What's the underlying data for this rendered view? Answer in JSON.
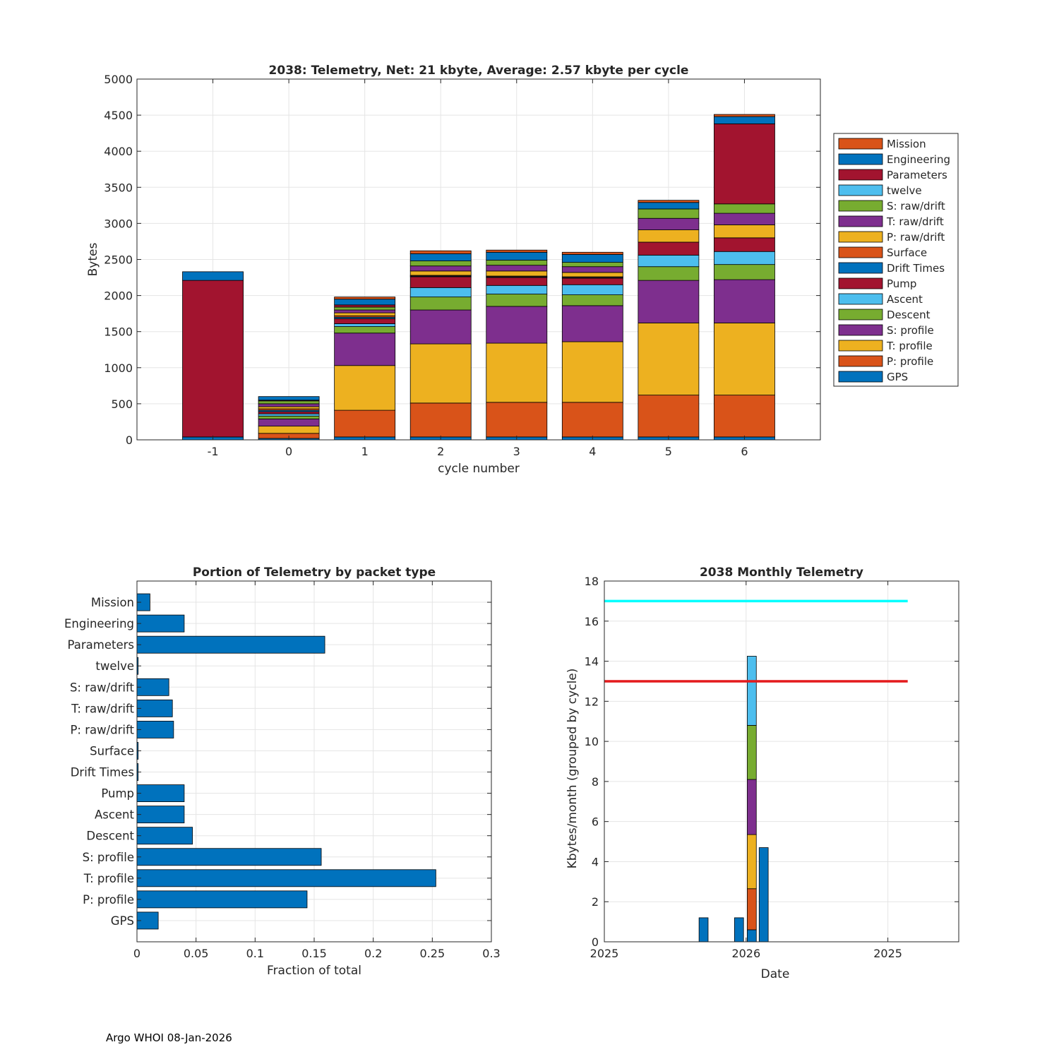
{
  "footer": "Argo WHOI 08-Jan-2026",
  "colors": {
    "mission": "#D95319",
    "engineering": "#0072BD",
    "parameters": "#A2142F",
    "twelve": "#4DBEEE",
    "s_raw": "#77AC30",
    "t_raw": "#7E2F8E",
    "p_raw": "#EDB120",
    "surface": "#D95319",
    "drift": "#0072BD",
    "pump": "#A2142F",
    "ascent": "#4DBEEE",
    "descent": "#77AC30",
    "s_profile": "#7E2F8E",
    "t_profile": "#EDB120",
    "p_profile": "#D95319",
    "gps": "#0072BD",
    "cyan_line": "#00FFFF",
    "red_line": "#E41A1C"
  },
  "chart_data": [
    {
      "type": "bar",
      "stacked": true,
      "title": "2038: Telemetry, Net:     21 kbyte,  Average: 2.57 kbyte per cycle",
      "xlabel": "cycle number",
      "ylabel": "Bytes",
      "ylim": [
        0,
        5000
      ],
      "yticks": [
        0,
        500,
        1000,
        1500,
        2000,
        2500,
        3000,
        3500,
        4000,
        4500,
        5000
      ],
      "xlim": [
        -2,
        7
      ],
      "categories": [
        "-1",
        "0",
        "1",
        "2",
        "3",
        "4",
        "5",
        "6"
      ],
      "legend_position": "outside-right",
      "series": [
        {
          "name": "GPS",
          "color_key": "gps",
          "values": [
            40,
            20,
            40,
            40,
            40,
            40,
            40,
            40
          ]
        },
        {
          "name": "P: profile",
          "color_key": "p_profile",
          "values": [
            0,
            70,
            370,
            470,
            480,
            480,
            580,
            580
          ]
        },
        {
          "name": "T: profile",
          "color_key": "t_profile",
          "values": [
            0,
            100,
            620,
            820,
            820,
            840,
            1000,
            1000
          ]
        },
        {
          "name": "S: profile",
          "color_key": "s_profile",
          "values": [
            0,
            100,
            450,
            470,
            510,
            500,
            590,
            600
          ]
        },
        {
          "name": "Descent",
          "color_key": "descent",
          "values": [
            0,
            40,
            90,
            180,
            170,
            150,
            190,
            210
          ]
        },
        {
          "name": "Ascent",
          "color_key": "ascent",
          "values": [
            0,
            30,
            40,
            130,
            120,
            140,
            160,
            180
          ]
        },
        {
          "name": "Pump",
          "color_key": "pump",
          "values": [
            0,
            30,
            70,
            150,
            110,
            90,
            180,
            190
          ]
        },
        {
          "name": "Drift Times",
          "color_key": "drift",
          "values": [
            0,
            20,
            20,
            10,
            10,
            10,
            0,
            0
          ]
        },
        {
          "name": "Surface",
          "color_key": "surface",
          "values": [
            0,
            20,
            20,
            10,
            10,
            10,
            0,
            0
          ]
        },
        {
          "name": "P: raw/drift",
          "color_key": "p_raw",
          "values": [
            0,
            30,
            40,
            60,
            70,
            60,
            170,
            180
          ]
        },
        {
          "name": "T: raw/drift",
          "color_key": "t_raw",
          "values": [
            0,
            40,
            40,
            70,
            80,
            80,
            160,
            160
          ]
        },
        {
          "name": "S: raw/drift",
          "color_key": "s_raw",
          "values": [
            0,
            40,
            40,
            70,
            70,
            60,
            130,
            130
          ]
        },
        {
          "name": "twelve",
          "color_key": "twelve",
          "values": [
            0,
            0,
            0,
            0,
            0,
            0,
            0,
            0
          ]
        },
        {
          "name": "Parameters",
          "color_key": "parameters",
          "values": [
            2170,
            10,
            30,
            0,
            0,
            0,
            0,
            1110
          ]
        },
        {
          "name": "Engineering",
          "color_key": "engineering",
          "values": [
            120,
            50,
            80,
            100,
            110,
            110,
            90,
            100
          ]
        },
        {
          "name": "Mission",
          "color_key": "mission",
          "values": [
            0,
            0,
            30,
            40,
            30,
            30,
            30,
            30
          ]
        }
      ],
      "legend": [
        "Mission",
        "Engineering",
        "Parameters",
        "twelve",
        "S: raw/drift",
        "T: raw/drift",
        "P: raw/drift",
        "Surface",
        "Drift Times",
        "Pump",
        "Ascent",
        "Descent",
        "S: profile",
        "T: profile",
        "P: profile",
        "GPS"
      ]
    },
    {
      "type": "bar",
      "orientation": "horizontal",
      "title": "Portion of Telemetry by packet type",
      "xlabel": "Fraction of total",
      "xlim": [
        0,
        0.3
      ],
      "xticks": [
        0,
        0.05,
        0.1,
        0.15,
        0.2,
        0.25,
        0.3
      ],
      "xtick_labels": [
        "0",
        "0.05",
        "0.1",
        "0.15",
        "0.2",
        "0.25",
        "0.3"
      ],
      "categories": [
        "GPS",
        "P: profile",
        "T: profile",
        "S: profile",
        "Descent",
        "Ascent",
        "Pump",
        "Drift Times",
        "Surface",
        "P: raw/drift",
        "T: raw/drift",
        "S: raw/drift",
        "twelve",
        "Parameters",
        "Engineering",
        "Mission"
      ],
      "values": [
        0.018,
        0.144,
        0.253,
        0.156,
        0.047,
        0.04,
        0.04,
        0.001,
        0.001,
        0.031,
        0.03,
        0.027,
        0.001,
        0.159,
        0.04,
        0.011
      ],
      "color_key": "gps"
    },
    {
      "type": "bar",
      "stacked": true,
      "title": "2038 Monthly Telemetry",
      "xlabel": "Date",
      "ylabel": "Kbytes/month (grouped by cycle)",
      "ylim": [
        0,
        18
      ],
      "yticks": [
        0,
        2,
        4,
        6,
        8,
        10,
        12,
        14,
        16,
        18
      ],
      "xlim": [
        0,
        12.5
      ],
      "xticks": [
        {
          "value": 0,
          "label": "2025"
        },
        {
          "value": 5,
          "label": "2026"
        },
        {
          "value": 10,
          "label": "2025"
        }
      ],
      "bars": [
        {
          "x": 3.5,
          "width": 0.32,
          "segments": [
            {
              "value": 1.2,
              "color_key": "gps"
            }
          ]
        },
        {
          "x": 4.75,
          "width": 0.32,
          "segments": [
            {
              "value": 1.2,
              "color_key": "gps"
            }
          ]
        },
        {
          "x": 5.2,
          "width": 0.32,
          "segments": [
            {
              "value": 0.6,
              "color_key": "gps"
            },
            {
              "value": 2.05,
              "color_key": "p_profile"
            },
            {
              "value": 2.7,
              "color_key": "t_profile"
            },
            {
              "value": 2.75,
              "color_key": "s_profile"
            },
            {
              "value": 2.7,
              "color_key": "descent"
            },
            {
              "value": 3.45,
              "color_key": "ascent"
            }
          ]
        },
        {
          "x": 5.62,
          "width": 0.32,
          "segments": [
            {
              "value": 4.7,
              "color_key": "gps"
            }
          ]
        }
      ],
      "hlines": [
        {
          "y": 17,
          "x_range": [
            0,
            10.7
          ],
          "color_key": "cyan_line"
        },
        {
          "y": 13,
          "x_range": [
            0,
            10.7
          ],
          "color_key": "red_line"
        }
      ]
    }
  ]
}
